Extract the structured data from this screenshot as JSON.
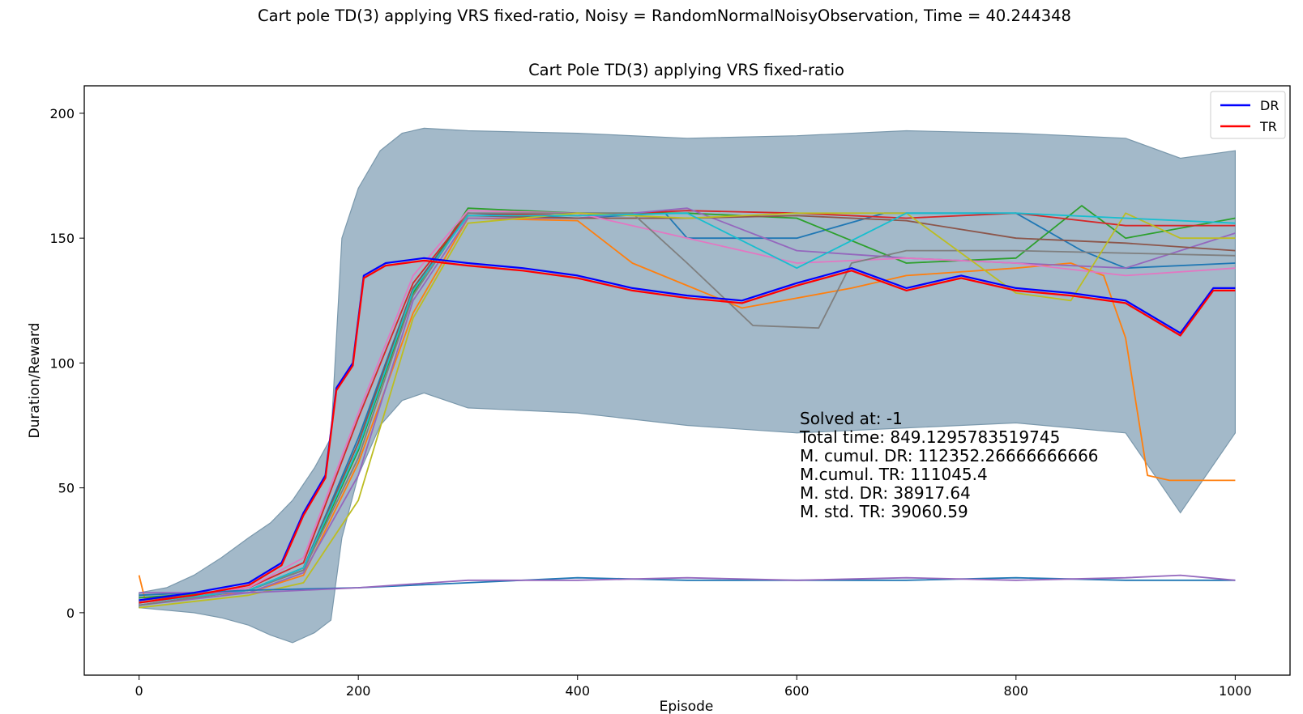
{
  "figure": {
    "suptitle": "Cart pole TD(3) applying VRS fixed-ratio, Noisy = RandomNormalNoisyObservation, Time = 40.244348"
  },
  "chart_data": {
    "type": "line",
    "title": "Cart Pole TD(3) applying VRS fixed-ratio",
    "xlabel": "Episode",
    "ylabel": "Duration/Reward",
    "xlim": [
      -50,
      1050
    ],
    "ylim": [
      -25,
      211
    ],
    "xticks": [
      0,
      200,
      400,
      600,
      800,
      1000
    ],
    "yticks": [
      0,
      50,
      100,
      150,
      200
    ],
    "grid": false,
    "legend": {
      "placement": "top-right",
      "entries": [
        {
          "label": "DR",
          "color": "#0000ff"
        },
        {
          "label": "TR",
          "color": "#ff0000"
        }
      ]
    },
    "annotation": [
      "Solved at: -1",
      "Total time: 849.1295783519745",
      "M. cumul. DR: 112352.26666666666",
      "M.cumul. TR: 111045.4",
      "M. std. DR: 38917.64",
      "M. std. TR: 39060.59"
    ],
    "band": {
      "color": "#a3b9c9",
      "edge": "#7a98ac",
      "upper": [
        [
          0,
          8
        ],
        [
          25,
          10
        ],
        [
          50,
          15
        ],
        [
          75,
          22
        ],
        [
          100,
          30
        ],
        [
          120,
          36
        ],
        [
          140,
          45
        ],
        [
          160,
          58
        ],
        [
          175,
          70
        ],
        [
          185,
          150
        ],
        [
          200,
          170
        ],
        [
          220,
          185
        ],
        [
          240,
          192
        ],
        [
          260,
          194
        ],
        [
          300,
          193
        ],
        [
          400,
          192
        ],
        [
          500,
          190
        ],
        [
          600,
          191
        ],
        [
          700,
          193
        ],
        [
          800,
          192
        ],
        [
          900,
          190
        ],
        [
          950,
          182
        ],
        [
          1000,
          185
        ]
      ],
      "lower": [
        [
          0,
          2
        ],
        [
          25,
          1
        ],
        [
          50,
          0
        ],
        [
          75,
          -2
        ],
        [
          100,
          -5
        ],
        [
          120,
          -9
        ],
        [
          140,
          -12
        ],
        [
          160,
          -8
        ],
        [
          175,
          -3
        ],
        [
          185,
          30
        ],
        [
          200,
          55
        ],
        [
          220,
          75
        ],
        [
          240,
          85
        ],
        [
          260,
          88
        ],
        [
          300,
          82
        ],
        [
          400,
          80
        ],
        [
          500,
          75
        ],
        [
          600,
          72
        ],
        [
          700,
          74
        ],
        [
          800,
          76
        ],
        [
          900,
          72
        ],
        [
          950,
          40
        ],
        [
          1000,
          72
        ]
      ]
    },
    "series": [
      {
        "name": "DR",
        "color": "#0000ff",
        "width": 2.2,
        "points": [
          [
            0,
            5
          ],
          [
            50,
            8
          ],
          [
            100,
            12
          ],
          [
            130,
            20
          ],
          [
            150,
            40
          ],
          [
            170,
            55
          ],
          [
            180,
            90
          ],
          [
            195,
            100
          ],
          [
            205,
            135
          ],
          [
            225,
            140
          ],
          [
            260,
            142
          ],
          [
            300,
            140
          ],
          [
            350,
            138
          ],
          [
            400,
            135
          ],
          [
            450,
            130
          ],
          [
            500,
            127
          ],
          [
            550,
            125
          ],
          [
            600,
            132
          ],
          [
            650,
            138
          ],
          [
            700,
            130
          ],
          [
            750,
            135
          ],
          [
            800,
            130
          ],
          [
            850,
            128
          ],
          [
            900,
            125
          ],
          [
            950,
            112
          ],
          [
            980,
            130
          ],
          [
            1000,
            130
          ]
        ]
      },
      {
        "name": "TR",
        "color": "#ff0000",
        "width": 2.2,
        "points": [
          [
            0,
            4
          ],
          [
            50,
            7
          ],
          [
            100,
            11
          ],
          [
            130,
            19
          ],
          [
            150,
            39
          ],
          [
            170,
            54
          ],
          [
            180,
            89
          ],
          [
            195,
            99
          ],
          [
            205,
            134
          ],
          [
            225,
            139
          ],
          [
            260,
            141
          ],
          [
            300,
            139
          ],
          [
            350,
            137
          ],
          [
            400,
            134
          ],
          [
            450,
            129
          ],
          [
            500,
            126
          ],
          [
            550,
            124
          ],
          [
            600,
            131
          ],
          [
            650,
            137
          ],
          [
            700,
            129
          ],
          [
            750,
            134
          ],
          [
            800,
            129
          ],
          [
            850,
            127
          ],
          [
            900,
            124
          ],
          [
            950,
            111
          ],
          [
            980,
            129
          ],
          [
            1000,
            129
          ]
        ]
      },
      {
        "color": "#ff7f0e",
        "width": 1.8,
        "points": [
          [
            0,
            15
          ],
          [
            5,
            6
          ],
          [
            100,
            8
          ],
          [
            150,
            15
          ],
          [
            200,
            60
          ],
          [
            250,
            120
          ],
          [
            300,
            158
          ],
          [
            400,
            157
          ],
          [
            450,
            140
          ],
          [
            550,
            122
          ],
          [
            600,
            126
          ],
          [
            650,
            130
          ],
          [
            700,
            135
          ],
          [
            800,
            138
          ],
          [
            850,
            140
          ],
          [
            880,
            135
          ],
          [
            900,
            110
          ],
          [
            920,
            55
          ],
          [
            940,
            53
          ],
          [
            1000,
            53
          ]
        ]
      },
      {
        "color": "#1f77b4",
        "width": 1.8,
        "points": [
          [
            0,
            3
          ],
          [
            100,
            9
          ],
          [
            150,
            18
          ],
          [
            200,
            70
          ],
          [
            250,
            130
          ],
          [
            300,
            160
          ],
          [
            400,
            158
          ],
          [
            480,
            160
          ],
          [
            500,
            150
          ],
          [
            600,
            150
          ],
          [
            680,
            160
          ],
          [
            800,
            160
          ],
          [
            860,
            145
          ],
          [
            900,
            138
          ],
          [
            1000,
            140
          ]
        ]
      },
      {
        "color": "#2ca02c",
        "width": 1.8,
        "points": [
          [
            0,
            6
          ],
          [
            100,
            9
          ],
          [
            150,
            17
          ],
          [
            200,
            65
          ],
          [
            250,
            128
          ],
          [
            300,
            162
          ],
          [
            400,
            160
          ],
          [
            500,
            160
          ],
          [
            600,
            158
          ],
          [
            700,
            140
          ],
          [
            800,
            142
          ],
          [
            860,
            163
          ],
          [
            900,
            150
          ],
          [
            1000,
            158
          ]
        ]
      },
      {
        "color": "#d62728",
        "width": 1.8,
        "points": [
          [
            0,
            4
          ],
          [
            100,
            10
          ],
          [
            150,
            20
          ],
          [
            200,
            78
          ],
          [
            250,
            132
          ],
          [
            300,
            160
          ],
          [
            400,
            159
          ],
          [
            500,
            161
          ],
          [
            600,
            160
          ],
          [
            700,
            158
          ],
          [
            800,
            160
          ],
          [
            900,
            155
          ],
          [
            1000,
            155
          ]
        ]
      },
      {
        "color": "#9467bd",
        "width": 1.8,
        "points": [
          [
            0,
            3
          ],
          [
            100,
            8
          ],
          [
            150,
            16
          ],
          [
            200,
            55
          ],
          [
            250,
            125
          ],
          [
            300,
            158
          ],
          [
            400,
            158
          ],
          [
            500,
            162
          ],
          [
            600,
            145
          ],
          [
            700,
            142
          ],
          [
            800,
            140
          ],
          [
            900,
            138
          ],
          [
            1000,
            152
          ]
        ]
      },
      {
        "color": "#8c564b",
        "width": 1.8,
        "points": [
          [
            0,
            5
          ],
          [
            100,
            9
          ],
          [
            150,
            18
          ],
          [
            200,
            68
          ],
          [
            250,
            130
          ],
          [
            300,
            159
          ],
          [
            400,
            158
          ],
          [
            500,
            158
          ],
          [
            600,
            159
          ],
          [
            700,
            157
          ],
          [
            800,
            150
          ],
          [
            900,
            148
          ],
          [
            1000,
            145
          ]
        ]
      },
      {
        "color": "#e377c2",
        "width": 1.8,
        "points": [
          [
            0,
            4
          ],
          [
            100,
            10
          ],
          [
            150,
            22
          ],
          [
            200,
            80
          ],
          [
            250,
            135
          ],
          [
            300,
            161
          ],
          [
            400,
            160
          ],
          [
            500,
            150
          ],
          [
            600,
            140
          ],
          [
            700,
            142
          ],
          [
            800,
            140
          ],
          [
            900,
            135
          ],
          [
            1000,
            138
          ]
        ]
      },
      {
        "color": "#7f7f7f",
        "width": 1.8,
        "points": [
          [
            0,
            3
          ],
          [
            100,
            9
          ],
          [
            150,
            17
          ],
          [
            200,
            62
          ],
          [
            250,
            127
          ],
          [
            300,
            160
          ],
          [
            450,
            160
          ],
          [
            500,
            140
          ],
          [
            560,
            115
          ],
          [
            620,
            114
          ],
          [
            650,
            140
          ],
          [
            700,
            145
          ],
          [
            800,
            145
          ],
          [
            1000,
            143
          ]
        ]
      },
      {
        "color": "#bcbd22",
        "width": 1.8,
        "points": [
          [
            0,
            2
          ],
          [
            100,
            7
          ],
          [
            150,
            12
          ],
          [
            200,
            45
          ],
          [
            250,
            118
          ],
          [
            300,
            156
          ],
          [
            400,
            160
          ],
          [
            500,
            158
          ],
          [
            600,
            160
          ],
          [
            700,
            160
          ],
          [
            800,
            128
          ],
          [
            850,
            125
          ],
          [
            900,
            160
          ],
          [
            950,
            150
          ],
          [
            1000,
            150
          ]
        ]
      },
      {
        "color": "#17becf",
        "width": 1.8,
        "points": [
          [
            0,
            4
          ],
          [
            100,
            9
          ],
          [
            150,
            18
          ],
          [
            200,
            66
          ],
          [
            250,
            129
          ],
          [
            300,
            159
          ],
          [
            400,
            159
          ],
          [
            500,
            160
          ],
          [
            600,
            138
          ],
          [
            700,
            160
          ],
          [
            800,
            160
          ],
          [
            900,
            158
          ],
          [
            1000,
            156
          ]
        ]
      },
      {
        "color": "#1f77b4",
        "width": 1.8,
        "points": [
          [
            0,
            7
          ],
          [
            100,
            9
          ],
          [
            200,
            10
          ],
          [
            300,
            12
          ],
          [
            400,
            14
          ],
          [
            500,
            13
          ],
          [
            600,
            13
          ],
          [
            700,
            13
          ],
          [
            800,
            14
          ],
          [
            900,
            13
          ],
          [
            1000,
            13
          ]
        ]
      },
      {
        "color": "#9467bd",
        "width": 1.8,
        "points": [
          [
            0,
            8
          ],
          [
            100,
            8
          ],
          [
            200,
            10
          ],
          [
            300,
            13
          ],
          [
            400,
            13
          ],
          [
            500,
            14
          ],
          [
            600,
            13
          ],
          [
            700,
            14
          ],
          [
            800,
            13
          ],
          [
            900,
            14
          ],
          [
            950,
            15
          ],
          [
            1000,
            13
          ]
        ]
      }
    ]
  }
}
